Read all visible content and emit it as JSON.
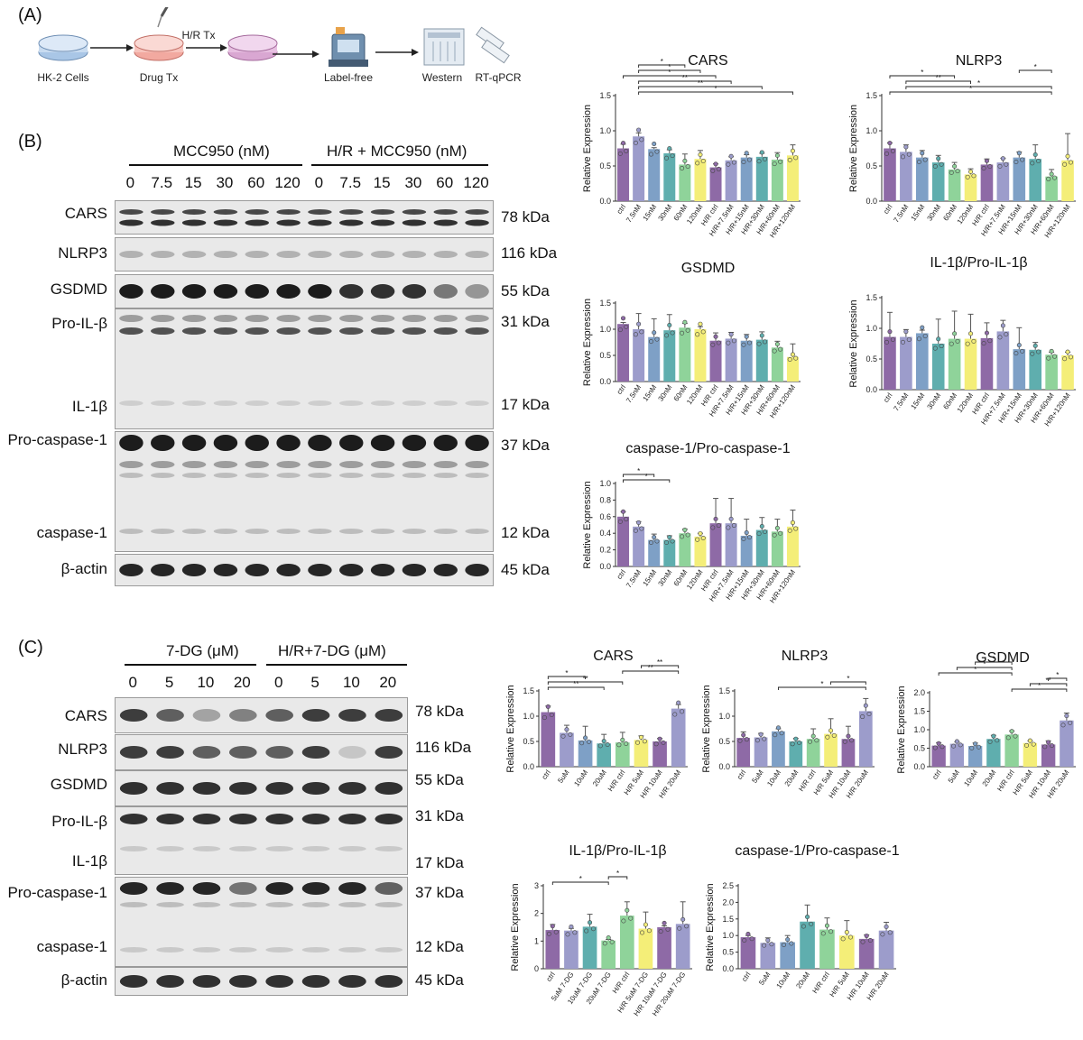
{
  "panels": {
    "a": "(A)",
    "b": "(B)",
    "c": "(C)"
  },
  "workflow": {
    "steps": [
      "HK-2 Cells",
      "Drug Tx",
      "",
      "Label-free",
      "Western",
      "RT-qPCR"
    ],
    "hr_tx": "H/R Tx"
  },
  "blot_b": {
    "group1": "MCC950 (nM)",
    "group2": "H/R + MCC950 (nM)",
    "lanes": [
      "0",
      "7.5",
      "15",
      "30",
      "60",
      "120",
      "0",
      "7.5",
      "15",
      "30",
      "60",
      "120"
    ],
    "proteins": [
      "CARS",
      "NLRP3",
      "GSDMD",
      "Pro-IL-β",
      "IL-1β",
      "Pro-caspase-1",
      "caspase-1",
      "β-actin"
    ],
    "kda": [
      "78 kDa",
      "116 kDa",
      "55 kDa",
      "31 kDa",
      "17 kDa",
      "37 kDa",
      "12 kDa",
      "45 kDa"
    ]
  },
  "blot_c": {
    "group1": "7-DG (μM)",
    "group2": "H/R+7-DG (μM)",
    "lanes": [
      "0",
      "5",
      "10",
      "20",
      "0",
      "5",
      "10",
      "20"
    ],
    "proteins": [
      "CARS",
      "NLRP3",
      "GSDMD",
      "Pro-IL-β",
      "IL-1β",
      "Pro-caspase-1",
      "caspase-1",
      "β-actin"
    ],
    "kda": [
      "78 kDa",
      "116 kDa",
      "55 kDa",
      "31 kDa",
      "17 kDa",
      "37 kDa",
      "12 kDa",
      "45 kDa"
    ]
  },
  "colors": {
    "purple": "#8e6aa6",
    "lavender": "#9c9ccb",
    "blue": "#7ea0c6",
    "teal": "#5faeae",
    "green": "#8fd39a",
    "yellow": "#f4ee78",
    "axis": "#333333"
  },
  "chart_data": [
    {
      "id": "b_cars",
      "type": "bar",
      "title": "CARS",
      "ylabel": "Relative Expression",
      "ylim": [
        0,
        1.5
      ],
      "yticks": [
        "0.0",
        "0.5",
        "1.0",
        "1.5"
      ],
      "categories": [
        "ctrl",
        "7.5nM",
        "15nM",
        "30nM",
        "60nM",
        "120nM",
        "H/R ctrl",
        "H/R+7.5nM",
        "H/R+15nM",
        "H/R+30nM",
        "H/R+60nM",
        "H/R+120nM"
      ],
      "values": [
        0.75,
        0.92,
        0.74,
        0.68,
        0.52,
        0.6,
        0.48,
        0.58,
        0.62,
        0.63,
        0.59,
        0.65
      ],
      "errors": [
        0.06,
        0.05,
        0.02,
        0.05,
        0.15,
        0.12,
        0.05,
        0.05,
        0.04,
        0.05,
        0.1,
        0.15
      ],
      "colors": [
        "#8e6aa6",
        "#9c9ccb",
        "#7ea0c6",
        "#5faeae",
        "#8fd39a",
        "#f4ee78",
        "#8e6aa6",
        "#9c9ccb",
        "#7ea0c6",
        "#5faeae",
        "#8fd39a",
        "#f4ee78"
      ],
      "significance": [
        {
          "from": 1,
          "to": 11,
          "label": "*"
        },
        {
          "from": 1,
          "to": 9,
          "label": "**"
        },
        {
          "from": 1,
          "to": 7,
          "label": "**"
        },
        {
          "from": 0,
          "to": 6,
          "label": "*"
        },
        {
          "from": 1,
          "to": 5,
          "label": "*"
        },
        {
          "from": 1,
          "to": 4,
          "label": "*"
        }
      ]
    },
    {
      "id": "b_nlrp3",
      "type": "bar",
      "title": "NLRP3",
      "ylabel": "Relative Expression",
      "ylim": [
        0,
        1.5
      ],
      "yticks": [
        "0.0",
        "0.5",
        "1.0",
        "1.5"
      ],
      "categories": [
        "ctrl",
        "7.5nM",
        "15nM",
        "30nM",
        "60nM",
        "120nM",
        "H/R ctrl",
        "H/R+7.5nM",
        "H/R+15nM",
        "H/R+30nM",
        "H/R+60nM",
        "H/R+120nM"
      ],
      "values": [
        0.75,
        0.7,
        0.62,
        0.55,
        0.45,
        0.38,
        0.52,
        0.55,
        0.62,
        0.6,
        0.35,
        0.58
      ],
      "errors": [
        0.08,
        0.1,
        0.1,
        0.1,
        0.1,
        0.08,
        0.08,
        0.06,
        0.08,
        0.2,
        0.1,
        0.38
      ],
      "colors": [
        "#8e6aa6",
        "#9c9ccb",
        "#7ea0c6",
        "#5faeae",
        "#8fd39a",
        "#f4ee78",
        "#8e6aa6",
        "#9c9ccb",
        "#7ea0c6",
        "#5faeae",
        "#8fd39a",
        "#f4ee78"
      ],
      "significance": [
        {
          "from": 0,
          "to": 10,
          "label": "*"
        },
        {
          "from": 1,
          "to": 10,
          "label": "*"
        },
        {
          "from": 1,
          "to": 5,
          "label": "**"
        },
        {
          "from": 0,
          "to": 4,
          "label": "*"
        },
        {
          "from": 8,
          "to": 10,
          "label": "*"
        }
      ]
    },
    {
      "id": "b_gsdmd",
      "type": "bar",
      "title": "GSDMD",
      "ylabel": "Relative Expression",
      "ylim": [
        0,
        1.5
      ],
      "yticks": [
        "0.0",
        "0.5",
        "1.0",
        "1.5"
      ],
      "categories": [
        "ctrl",
        "7.5nM",
        "15nM",
        "30nM",
        "60nM",
        "120nM",
        "H/R ctrl",
        "H/R+7.5nM",
        "H/R+15nM",
        "H/R+30nM",
        "H/R+60nM",
        "H/R+120nM"
      ],
      "values": [
        1.1,
        1.0,
        0.85,
        0.98,
        1.03,
        1.0,
        0.78,
        0.82,
        0.78,
        0.8,
        0.65,
        0.47
      ],
      "errors": [
        0.03,
        0.3,
        0.35,
        0.3,
        0.08,
        0.05,
        0.15,
        0.12,
        0.12,
        0.15,
        0.12,
        0.25
      ],
      "colors": [
        "#8e6aa6",
        "#9c9ccb",
        "#7ea0c6",
        "#5faeae",
        "#8fd39a",
        "#f4ee78",
        "#8e6aa6",
        "#9c9ccb",
        "#7ea0c6",
        "#5faeae",
        "#8fd39a",
        "#f4ee78"
      ],
      "significance": []
    },
    {
      "id": "b_il1b",
      "type": "bar",
      "title": "IL-1β/Pro-IL-1β",
      "ylabel": "Relative Expression",
      "ylim": [
        0,
        1.5
      ],
      "yticks": [
        "0.0",
        "0.5",
        "1.0",
        "1.5"
      ],
      "categories": [
        "ctrl",
        "7.5nM",
        "15nM",
        "30nM",
        "60nM",
        "120nM",
        "H/R ctrl",
        "H/R+7.5nM",
        "H/R+15nM",
        "H/R+30nM",
        "H/R+60nM",
        "H/R+120nM"
      ],
      "values": [
        0.86,
        0.86,
        0.92,
        0.75,
        0.83,
        0.83,
        0.84,
        0.95,
        0.66,
        0.65,
        0.57,
        0.56
      ],
      "errors": [
        0.4,
        0.12,
        0.05,
        0.4,
        0.45,
        0.4,
        0.25,
        0.18,
        0.35,
        0.12,
        0.04,
        0.05
      ],
      "colors": [
        "#8e6aa6",
        "#9c9ccb",
        "#7ea0c6",
        "#5faeae",
        "#8fd39a",
        "#f4ee78",
        "#8e6aa6",
        "#9c9ccb",
        "#7ea0c6",
        "#5faeae",
        "#8fd39a",
        "#f4ee78"
      ],
      "significance": []
    },
    {
      "id": "b_casp1",
      "type": "bar",
      "title": "caspase-1/Pro-caspase-1",
      "ylabel": "Relative Expression",
      "ylim": [
        0,
        1.0
      ],
      "yticks": [
        "0.0",
        "0.2",
        "0.4",
        "0.6",
        "0.8",
        "1.0"
      ],
      "categories": [
        "ctrl",
        "7.5nM",
        "15nM",
        "30nM",
        "60nM",
        "120nM",
        "H/R ctrl",
        "H/R+7.5nM",
        "H/R+15nM",
        "H/R+30nM",
        "H/R+60nM",
        "H/R+120nM"
      ],
      "values": [
        0.6,
        0.48,
        0.32,
        0.32,
        0.4,
        0.36,
        0.52,
        0.52,
        0.37,
        0.44,
        0.42,
        0.48
      ],
      "errors": [
        0.06,
        0.06,
        0.07,
        0.05,
        0.05,
        0.04,
        0.3,
        0.3,
        0.2,
        0.15,
        0.15,
        0.2
      ],
      "colors": [
        "#8e6aa6",
        "#9c9ccb",
        "#7ea0c6",
        "#5faeae",
        "#8fd39a",
        "#f4ee78",
        "#8e6aa6",
        "#9c9ccb",
        "#7ea0c6",
        "#5faeae",
        "#8fd39a",
        "#f4ee78"
      ],
      "significance": [
        {
          "from": 0,
          "to": 3,
          "label": "*"
        },
        {
          "from": 0,
          "to": 2,
          "label": "*"
        }
      ]
    },
    {
      "id": "c_cars",
      "type": "bar",
      "title": "CARS",
      "ylabel": "Relative Expression",
      "ylim": [
        0,
        1.5
      ],
      "yticks": [
        "0.0",
        "0.5",
        "1.0",
        "1.5"
      ],
      "categories": [
        "ctrl",
        "5uM",
        "10uM",
        "20uM",
        "H/R ctrl",
        "H/R 5uM",
        "H/R 10uM",
        "H/R 20uM"
      ],
      "values": [
        1.08,
        0.67,
        0.52,
        0.46,
        0.48,
        0.53,
        0.5,
        1.15
      ],
      "errors": [
        0.12,
        0.15,
        0.28,
        0.18,
        0.2,
        0.08,
        0.06,
        0.08
      ],
      "colors": [
        "#8e6aa6",
        "#9c9ccb",
        "#7ea0c6",
        "#5faeae",
        "#8fd39a",
        "#f4ee78",
        "#8e6aa6",
        "#9c9ccb"
      ],
      "significance": [
        {
          "from": 0,
          "to": 3,
          "label": "**"
        },
        {
          "from": 0,
          "to": 4,
          "label": "**"
        },
        {
          "from": 0,
          "to": 2,
          "label": "*"
        },
        {
          "from": 4,
          "to": 7,
          "label": "**"
        },
        {
          "from": 5,
          "to": 7,
          "label": "**"
        }
      ]
    },
    {
      "id": "c_nlrp3",
      "type": "bar",
      "title": "NLRP3",
      "ylabel": "Relative Expression",
      "ylim": [
        0,
        1.5
      ],
      "yticks": [
        "0.0",
        "0.5",
        "1.0",
        "1.5"
      ],
      "categories": [
        "ctrl",
        "5uM",
        "10uM",
        "20uM",
        "H/R ctrl",
        "H/R 5uM",
        "H/R 10uM",
        "H/R 20uM"
      ],
      "values": [
        0.57,
        0.58,
        0.7,
        0.5,
        0.55,
        0.65,
        0.55,
        1.1
      ],
      "errors": [
        0.12,
        0.08,
        0.05,
        0.06,
        0.2,
        0.3,
        0.25,
        0.25
      ],
      "colors": [
        "#8e6aa6",
        "#9c9ccb",
        "#7ea0c6",
        "#5faeae",
        "#8fd39a",
        "#f4ee78",
        "#8e6aa6",
        "#9c9ccb"
      ],
      "significance": [
        {
          "from": 2,
          "to": 7,
          "label": "*"
        },
        {
          "from": 5,
          "to": 7,
          "label": "*"
        }
      ]
    },
    {
      "id": "c_gsdmd",
      "type": "bar",
      "title": "GSDMD",
      "ylabel": "Relative Expression",
      "ylim": [
        0,
        2.0
      ],
      "yticks": [
        "0.0",
        "0.5",
        "1.0",
        "1.5",
        "2.0"
      ],
      "categories": [
        "ctrl",
        "5uM",
        "10uM",
        "20uM",
        "H/R ctrl",
        "H/R 5uM",
        "H/R 10uM",
        "H/R 20uM"
      ],
      "values": [
        0.57,
        0.62,
        0.56,
        0.75,
        0.87,
        0.64,
        0.6,
        1.25
      ],
      "errors": [
        0.08,
        0.05,
        0.08,
        0.1,
        0.1,
        0.06,
        0.1,
        0.2
      ],
      "colors": [
        "#8e6aa6",
        "#9c9ccb",
        "#7ea0c6",
        "#5faeae",
        "#8fd39a",
        "#f4ee78",
        "#8e6aa6",
        "#9c9ccb"
      ],
      "significance": [
        {
          "from": 4,
          "to": 7,
          "label": "*"
        },
        {
          "from": 5,
          "to": 7,
          "label": "**"
        },
        {
          "from": 6,
          "to": 7,
          "label": "*"
        },
        {
          "from": 0,
          "to": 4,
          "label": "*"
        },
        {
          "from": 1,
          "to": 4,
          "label": "*"
        },
        {
          "from": 2,
          "to": 4,
          "label": "*"
        }
      ]
    },
    {
      "id": "c_il1b",
      "type": "bar",
      "title": "IL-1β/Pro-IL-1β",
      "ylabel": "Relative Expression",
      "ylim": [
        0,
        3
      ],
      "yticks": [
        "0",
        "1",
        "2",
        "3"
      ],
      "categories": [
        "ctrl",
        "5uM 7-DG",
        "10uM 7-DG",
        "20uM 7-DG",
        "H/R ctrl",
        "H/R 5uM 7-DG",
        "H/R 10uM 7-DG",
        "H/R 20uM 7-DG"
      ],
      "values": [
        1.4,
        1.38,
        1.52,
        1.02,
        1.92,
        1.45,
        1.5,
        1.62
      ],
      "errors": [
        0.2,
        0.08,
        0.45,
        0.04,
        0.5,
        0.6,
        0.05,
        0.8
      ],
      "colors": [
        "#8e6aa6",
        "#9c9ccb",
        "#5faeae",
        "#8fd39a",
        "#8fd39a",
        "#f4ee78",
        "#8e6aa6",
        "#9c9ccb"
      ],
      "significance": [
        {
          "from": 0,
          "to": 3,
          "label": "*"
        },
        {
          "from": 3,
          "to": 4,
          "label": "*"
        }
      ]
    },
    {
      "id": "c_casp1",
      "type": "bar",
      "title": "caspase-1/Pro-caspase-1",
      "ylabel": "Relative Expression",
      "ylim": [
        0,
        2.5
      ],
      "yticks": [
        "0.0",
        "0.5",
        "1.0",
        "1.5",
        "2.0",
        "2.5"
      ],
      "categories": [
        "ctrl",
        "5uM",
        "10uM",
        "20uM",
        "H/R ctrl",
        "H/R 5uM",
        "H/R 10uM",
        "H/R 20uM"
      ],
      "values": [
        0.95,
        0.78,
        0.8,
        1.42,
        1.18,
        1.0,
        0.9,
        1.15
      ],
      "errors": [
        0.05,
        0.15,
        0.2,
        0.5,
        0.35,
        0.45,
        0.12,
        0.25
      ],
      "colors": [
        "#8e6aa6",
        "#9c9ccb",
        "#7ea0c6",
        "#5faeae",
        "#8fd39a",
        "#f4ee78",
        "#8e6aa6",
        "#9c9ccb"
      ],
      "significance": []
    }
  ]
}
